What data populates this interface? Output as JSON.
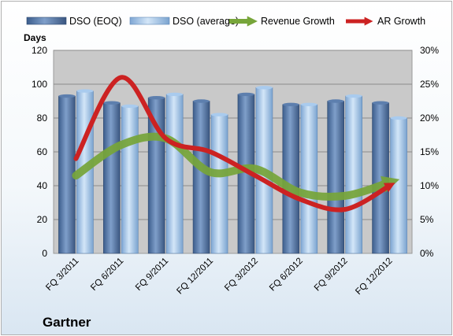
{
  "company_label": "Gartner",
  "colors": {
    "plot_bg": "#c9c9c9",
    "dso_eoq": "#4a6fa0",
    "dso_avg": "#8fb6e0",
    "revenue_growth": "#77a53a",
    "ar_growth": "#cc2222"
  },
  "chart_data": {
    "type": "bar",
    "title": "",
    "categories": [
      "FQ 3/2011",
      "FQ 6/2011",
      "FQ 9/2011",
      "FQ 12/2011",
      "FQ 3/2012",
      "FQ 6/2012",
      "FQ 9/2012",
      "FQ 12/2012"
    ],
    "ylabel": "Days",
    "ylim": [
      0,
      120
    ],
    "yticks": [
      "0",
      "20",
      "40",
      "60",
      "80",
      "100",
      "120"
    ],
    "y2lim": [
      0,
      30
    ],
    "y2ticks": [
      "0%",
      "5%",
      "10%",
      "15%",
      "20%",
      "25%",
      "30%"
    ],
    "grid": true,
    "legend": "top",
    "series": [
      {
        "name": "DSO (EOQ)",
        "type": "bar",
        "axis": "left",
        "values": [
          93,
          89,
          92,
          90,
          94,
          88,
          90,
          89
        ]
      },
      {
        "name": "DSO (average)",
        "type": "bar",
        "axis": "left",
        "values": [
          96,
          87,
          94,
          82,
          98,
          88,
          93,
          80
        ]
      },
      {
        "name": "Revenue Growth",
        "type": "line",
        "axis": "right",
        "unit": "%",
        "values": [
          11.5,
          16,
          17,
          12,
          12.5,
          9,
          8.5,
          10.5
        ]
      },
      {
        "name": "AR Growth",
        "type": "line",
        "axis": "right",
        "unit": "%",
        "values": [
          14,
          26,
          17,
          15,
          11.5,
          8,
          6.5,
          10
        ]
      }
    ]
  }
}
